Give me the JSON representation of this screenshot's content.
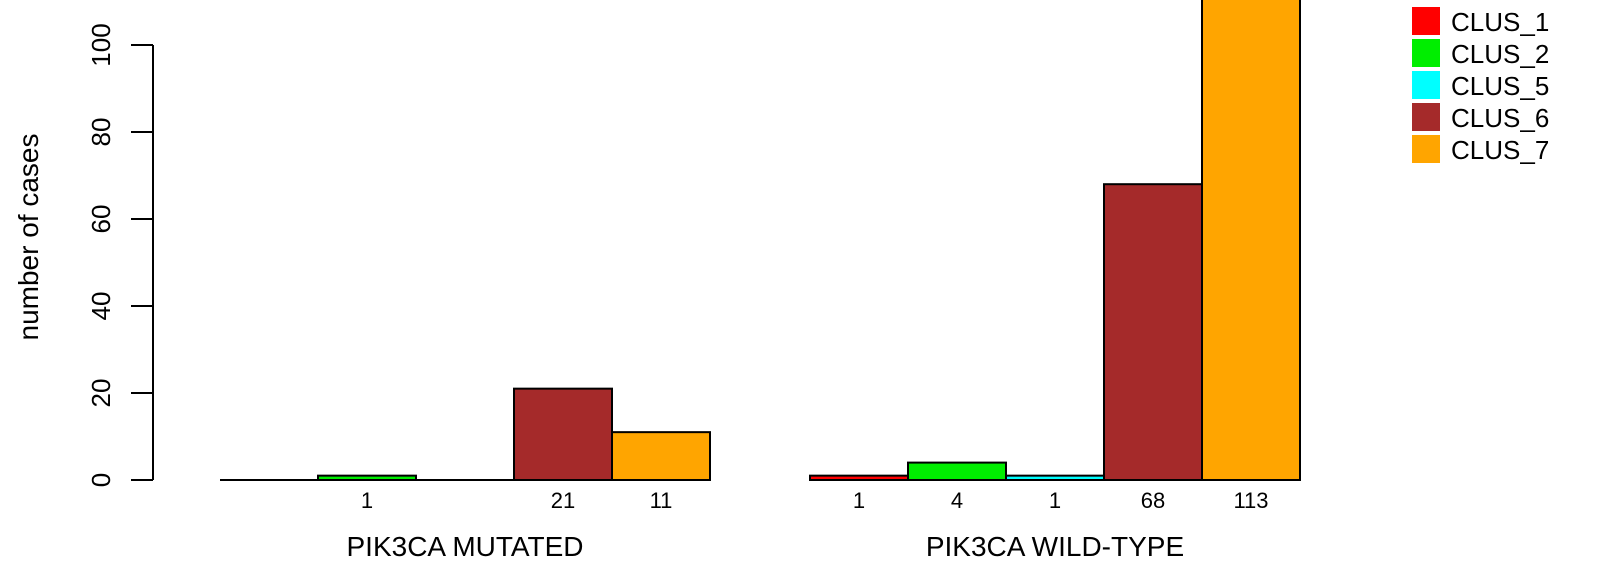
{
  "chart_data": {
    "type": "bar",
    "title": "",
    "xlabel": "",
    "ylabel": "number of cases",
    "ylim": [
      0,
      113
    ],
    "yticks": [
      0,
      20,
      40,
      60,
      80,
      100
    ],
    "grid": false,
    "legend_position": "top-right",
    "groups": [
      {
        "label": "PIK3CA MUTATED",
        "values": [
          0,
          1,
          0,
          21,
          11
        ],
        "data_labels": [
          "",
          "1",
          "",
          "21",
          "11"
        ]
      },
      {
        "label": "PIK3CA WILD-TYPE",
        "values": [
          1,
          4,
          1,
          68,
          113
        ],
        "data_labels": [
          "1",
          "4",
          "1",
          "68",
          "113"
        ]
      }
    ],
    "series": [
      {
        "name": "CLUS_1",
        "color": "#ff0000"
      },
      {
        "name": "CLUS_2",
        "color": "#00ee00"
      },
      {
        "name": "CLUS_5",
        "color": "#00ffff"
      },
      {
        "name": "CLUS_6",
        "color": "#a52a2a"
      },
      {
        "name": "CLUS_7",
        "color": "#ffa500"
      }
    ]
  }
}
